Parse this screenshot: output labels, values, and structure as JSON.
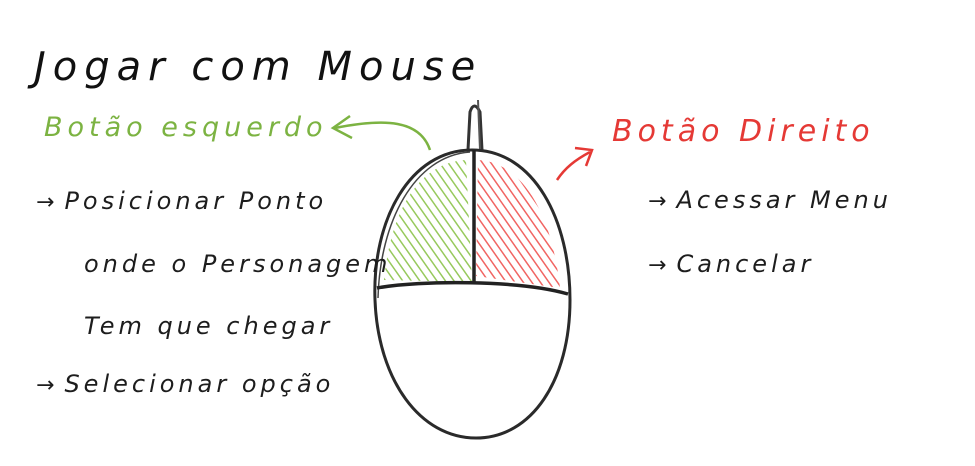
{
  "title": "Jogar com Mouse",
  "left_button": {
    "heading": "Botão esquerdo",
    "items": [
      "Posicionar Ponto",
      "onde o Personagem",
      "Tem que chegar",
      "Selecionar opção"
    ],
    "color": "#7cb342"
  },
  "right_button": {
    "heading": "Botão Direito",
    "items": [
      "Acessar Menu",
      "Cancelar"
    ],
    "color": "#e53935"
  },
  "icons": [
    "mouse-drawing",
    "arrow-to-left-button",
    "arrow-to-right-button",
    "bullet-arrow-icon"
  ],
  "ink_color": "#1a1a1a"
}
